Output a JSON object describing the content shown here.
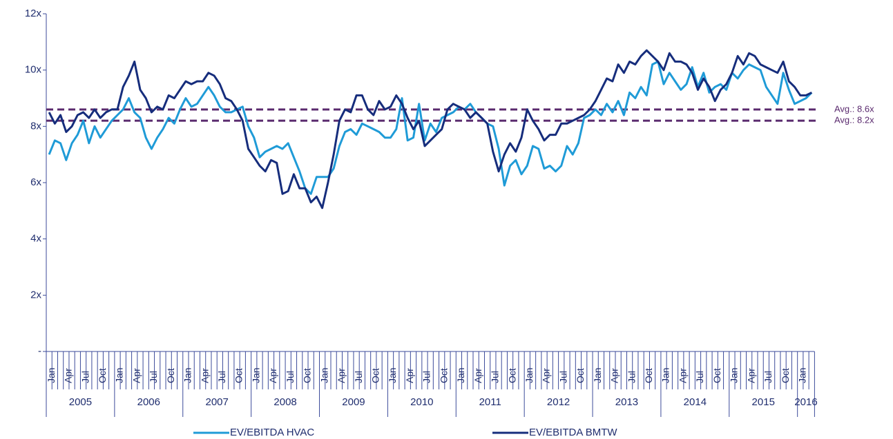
{
  "chart_data": {
    "type": "line",
    "categories": [
      "Jan",
      null,
      null,
      "Apr",
      null,
      null,
      "Jul",
      null,
      null,
      "Oct",
      null,
      null,
      "Jan",
      null,
      null,
      "Apr",
      null,
      null,
      "Jul",
      null,
      null,
      "Oct",
      null,
      null,
      "Jan",
      null,
      null,
      "Apr",
      null,
      null,
      "Jul",
      null,
      null,
      "Oct",
      null,
      null,
      "Jan",
      null,
      null,
      "Apr",
      null,
      null,
      "Jul",
      null,
      null,
      "Oct",
      null,
      null,
      "Jan",
      null,
      null,
      "Apr",
      null,
      null,
      "Jul",
      null,
      null,
      "Oct",
      null,
      null,
      "Jan",
      null,
      null,
      "Apr",
      null,
      null,
      "Jul",
      null,
      null,
      "Oct",
      null,
      null,
      "Jan",
      null,
      null,
      "Apr",
      null,
      null,
      "Jul",
      null,
      null,
      "Oct",
      null,
      null,
      "Jan",
      null,
      null,
      "Apr",
      null,
      null,
      "Jul",
      null,
      null,
      "Oct",
      null,
      null,
      "Jan",
      null,
      null,
      "Apr",
      null,
      null,
      "Jul",
      null,
      null,
      "Oct",
      null,
      null,
      "Jan",
      null,
      null,
      "Apr",
      null,
      null,
      "Jul",
      null,
      null,
      "Oct",
      null,
      null,
      "Jan",
      null,
      null,
      "Apr",
      null,
      null,
      "Jul",
      null,
      null,
      "Oct",
      null,
      null,
      "Jan",
      null,
      null
    ],
    "groups": [
      "2005",
      "2006",
      "2007",
      "2008",
      "2009",
      "2010",
      "2011",
      "2012",
      "2013",
      "2014",
      "2015",
      "2016"
    ],
    "series": [
      {
        "name": "EV/EBITDA HVAC",
        "color": "#1f9bd7",
        "values": [
          7.0,
          7.5,
          7.4,
          6.8,
          7.4,
          7.7,
          8.2,
          7.4,
          8.0,
          7.6,
          7.9,
          8.2,
          8.4,
          8.6,
          9.0,
          8.5,
          8.3,
          7.6,
          7.2,
          7.6,
          7.9,
          8.3,
          8.1,
          8.6,
          9.0,
          8.7,
          8.8,
          9.1,
          9.4,
          9.1,
          8.7,
          8.5,
          8.5,
          8.6,
          8.7,
          8.0,
          7.6,
          6.9,
          7.1,
          7.2,
          7.3,
          7.2,
          7.4,
          6.9,
          6.4,
          5.8,
          5.6,
          6.2,
          6.2,
          6.2,
          6.5,
          7.3,
          7.8,
          7.9,
          7.7,
          8.1,
          8.0,
          7.9,
          7.8,
          7.6,
          7.6,
          7.9,
          9.0,
          7.5,
          7.6,
          8.8,
          7.5,
          8.1,
          7.8,
          8.3,
          8.4,
          8.5,
          8.7,
          8.6,
          8.8,
          8.5,
          8.3,
          8.1,
          8.0,
          7.2,
          5.9,
          6.6,
          6.8,
          6.3,
          6.6,
          7.3,
          7.2,
          6.5,
          6.6,
          6.4,
          6.6,
          7.3,
          7.0,
          7.4,
          8.3,
          8.4,
          8.6,
          8.4,
          8.8,
          8.5,
          8.9,
          8.4,
          9.2,
          9.0,
          9.4,
          9.1,
          10.2,
          10.3,
          9.5,
          9.9,
          9.6,
          9.3,
          9.5,
          10.1,
          9.4,
          9.9,
          9.2,
          9.4,
          9.5,
          9.3,
          9.9,
          9.7,
          10.0,
          10.2,
          10.1,
          10.0,
          9.4,
          9.1,
          8.8,
          9.9,
          9.3,
          8.8,
          8.9,
          9.0,
          9.2
        ]
      },
      {
        "name": "EV/EBITDA BMTW",
        "color": "#162d7c",
        "values": [
          8.5,
          8.1,
          8.4,
          7.8,
          8.0,
          8.4,
          8.5,
          8.3,
          8.6,
          8.3,
          8.5,
          8.6,
          8.6,
          9.4,
          9.8,
          10.3,
          9.3,
          9.0,
          8.5,
          8.7,
          8.6,
          9.1,
          9.0,
          9.3,
          9.6,
          9.5,
          9.6,
          9.6,
          9.9,
          9.8,
          9.5,
          9.0,
          8.9,
          8.6,
          8.2,
          7.2,
          6.9,
          6.6,
          6.4,
          6.8,
          6.7,
          5.6,
          5.7,
          6.3,
          5.8,
          5.8,
          5.3,
          5.5,
          5.1,
          6.0,
          7.0,
          8.2,
          8.6,
          8.5,
          9.1,
          9.1,
          8.6,
          8.4,
          8.9,
          8.6,
          8.7,
          9.1,
          8.8,
          8.3,
          7.9,
          8.2,
          7.3,
          7.5,
          7.7,
          7.9,
          8.6,
          8.8,
          8.7,
          8.6,
          8.3,
          8.5,
          8.3,
          8.1,
          7.1,
          6.4,
          7.0,
          7.4,
          7.1,
          7.6,
          8.6,
          8.2,
          7.9,
          7.5,
          7.7,
          7.7,
          8.1,
          8.1,
          8.2,
          8.3,
          8.4,
          8.6,
          8.9,
          9.3,
          9.7,
          9.6,
          10.2,
          9.9,
          10.3,
          10.2,
          10.5,
          10.7,
          10.5,
          10.3,
          10.0,
          10.6,
          10.3,
          10.3,
          10.2,
          9.9,
          9.3,
          9.7,
          9.4,
          8.9,
          9.3,
          9.5,
          9.9,
          10.5,
          10.2,
          10.6,
          10.5,
          10.2,
          10.1,
          10.0,
          9.9,
          10.3,
          9.6,
          9.4,
          9.1,
          9.1,
          9.2
        ]
      }
    ],
    "ylim": [
      0,
      12
    ],
    "yticks": [
      {
        "value": 0,
        "label": "-"
      },
      {
        "value": 2,
        "label": "2x"
      },
      {
        "value": 4,
        "label": "4x"
      },
      {
        "value": 6,
        "label": "6x"
      },
      {
        "value": 8,
        "label": "8x"
      },
      {
        "value": 10,
        "label": "10x"
      },
      {
        "value": 12,
        "label": "12x"
      }
    ],
    "ref_lines": [
      {
        "value": 8.6,
        "label": "Avg.: 8.6x",
        "color": "#5a2a6e"
      },
      {
        "value": 8.2,
        "label": "Avg.: 8.2x",
        "color": "#5a2a6e"
      }
    ],
    "legend": "bottom"
  }
}
